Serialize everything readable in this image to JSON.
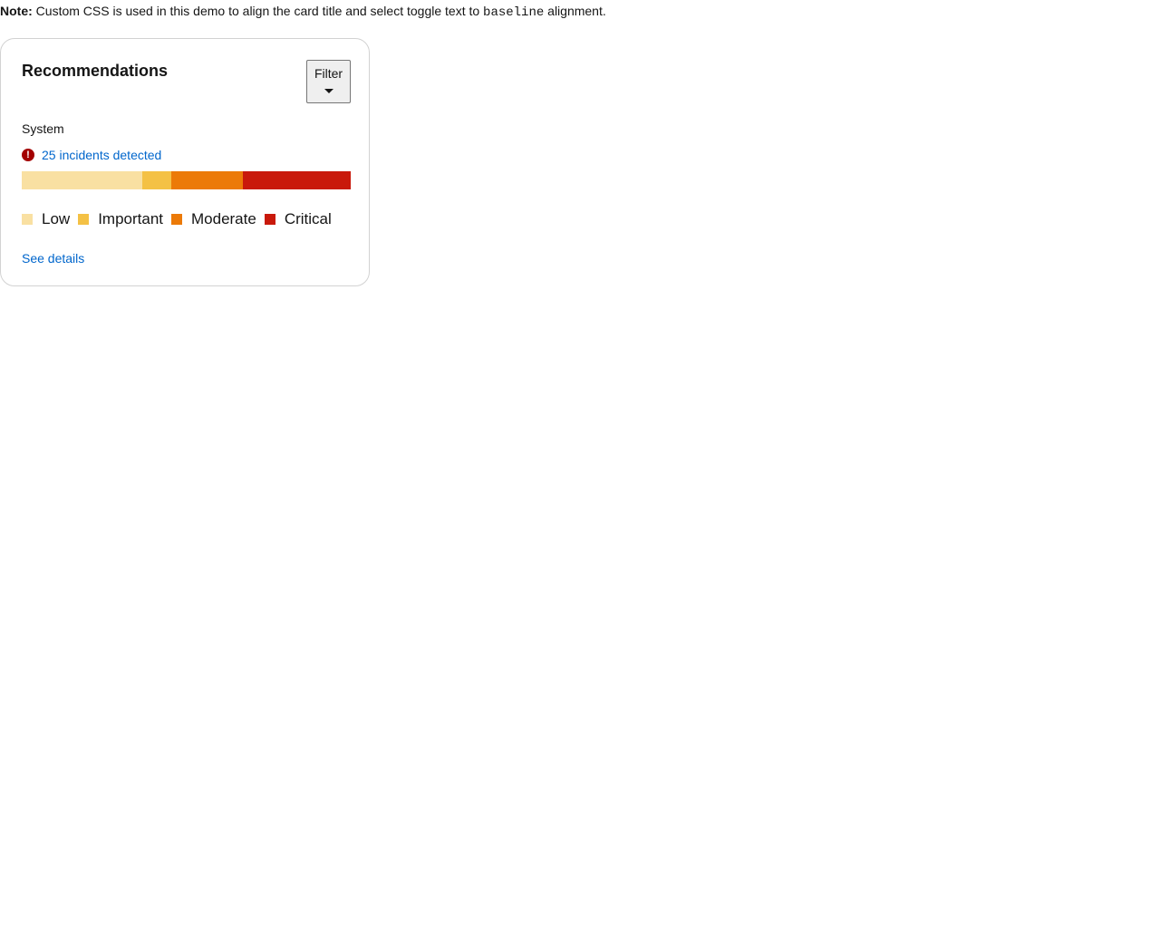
{
  "note": {
    "label": "Note:",
    "text_before": " Custom CSS is used in this demo to align the card title and select toggle text to ",
    "code": "baseline",
    "text_after": " alignment."
  },
  "card": {
    "title": "Recommendations",
    "filter_label": "Filter",
    "system_label": "System",
    "incidents_text": "25 incidents detected",
    "see_details": "See details"
  },
  "severity_bar": {
    "segments": [
      {
        "name": "Low",
        "value": 133,
        "color": "#f9e0a2"
      },
      {
        "name": "Important",
        "value": 32,
        "color": "#f4c145"
      },
      {
        "name": "Moderate",
        "value": 79,
        "color": "#ec7a08"
      },
      {
        "name": "Critical",
        "value": 119,
        "color": "#c9190b"
      }
    ]
  },
  "legend": [
    {
      "label": "Low",
      "color": "#f9e0a2"
    },
    {
      "label": "Important",
      "color": "#f4c145"
    },
    {
      "label": "Moderate",
      "color": "#ec7a08"
    },
    {
      "label": "Critical",
      "color": "#c9190b"
    }
  ],
  "icons": {
    "incident_icon": "exclamation-circle-icon",
    "filter_caret": "caret-down-icon"
  }
}
